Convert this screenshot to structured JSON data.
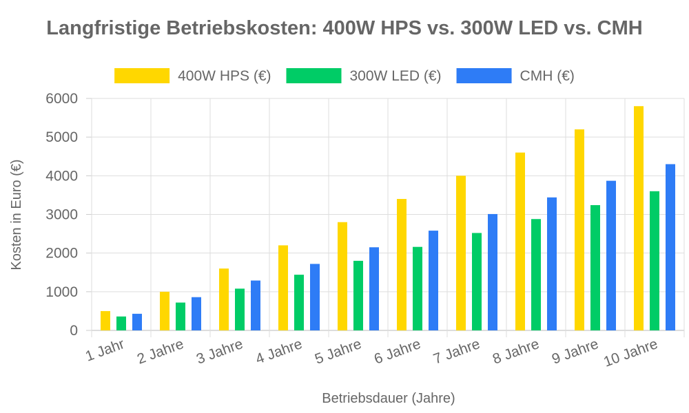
{
  "chart_data": {
    "type": "bar",
    "title": "Langfristige Betriebskosten: 400W HPS vs. 300W LED vs. CMH",
    "xlabel": "Betriebsdauer (Jahre)",
    "ylabel": "Kosten in Euro (€)",
    "ylim": [
      0,
      6000
    ],
    "yticks": [
      0,
      1000,
      2000,
      3000,
      4000,
      5000,
      6000
    ],
    "grid": true,
    "legend_position": "top",
    "categories": [
      "1 Jahr",
      "2 Jahre",
      "3 Jahre",
      "4 Jahre",
      "5 Jahre",
      "6 Jahre",
      "7 Jahre",
      "8 Jahre",
      "9 Jahre",
      "10 Jahre"
    ],
    "series": [
      {
        "name": "400W HPS (€)",
        "color": "#FFD700",
        "values": [
          500,
          1000,
          1600,
          2200,
          2800,
          3400,
          4000,
          4600,
          5200,
          5800
        ]
      },
      {
        "name": "300W LED (€)",
        "color": "#00CC66",
        "values": [
          360,
          720,
          1080,
          1440,
          1800,
          2160,
          2520,
          2880,
          3240,
          3600
        ]
      },
      {
        "name": "CMH (€)",
        "color": "#2E7CF6",
        "values": [
          430,
          860,
          1290,
          1720,
          2150,
          2580,
          3010,
          3440,
          3870,
          4300
        ]
      }
    ]
  }
}
